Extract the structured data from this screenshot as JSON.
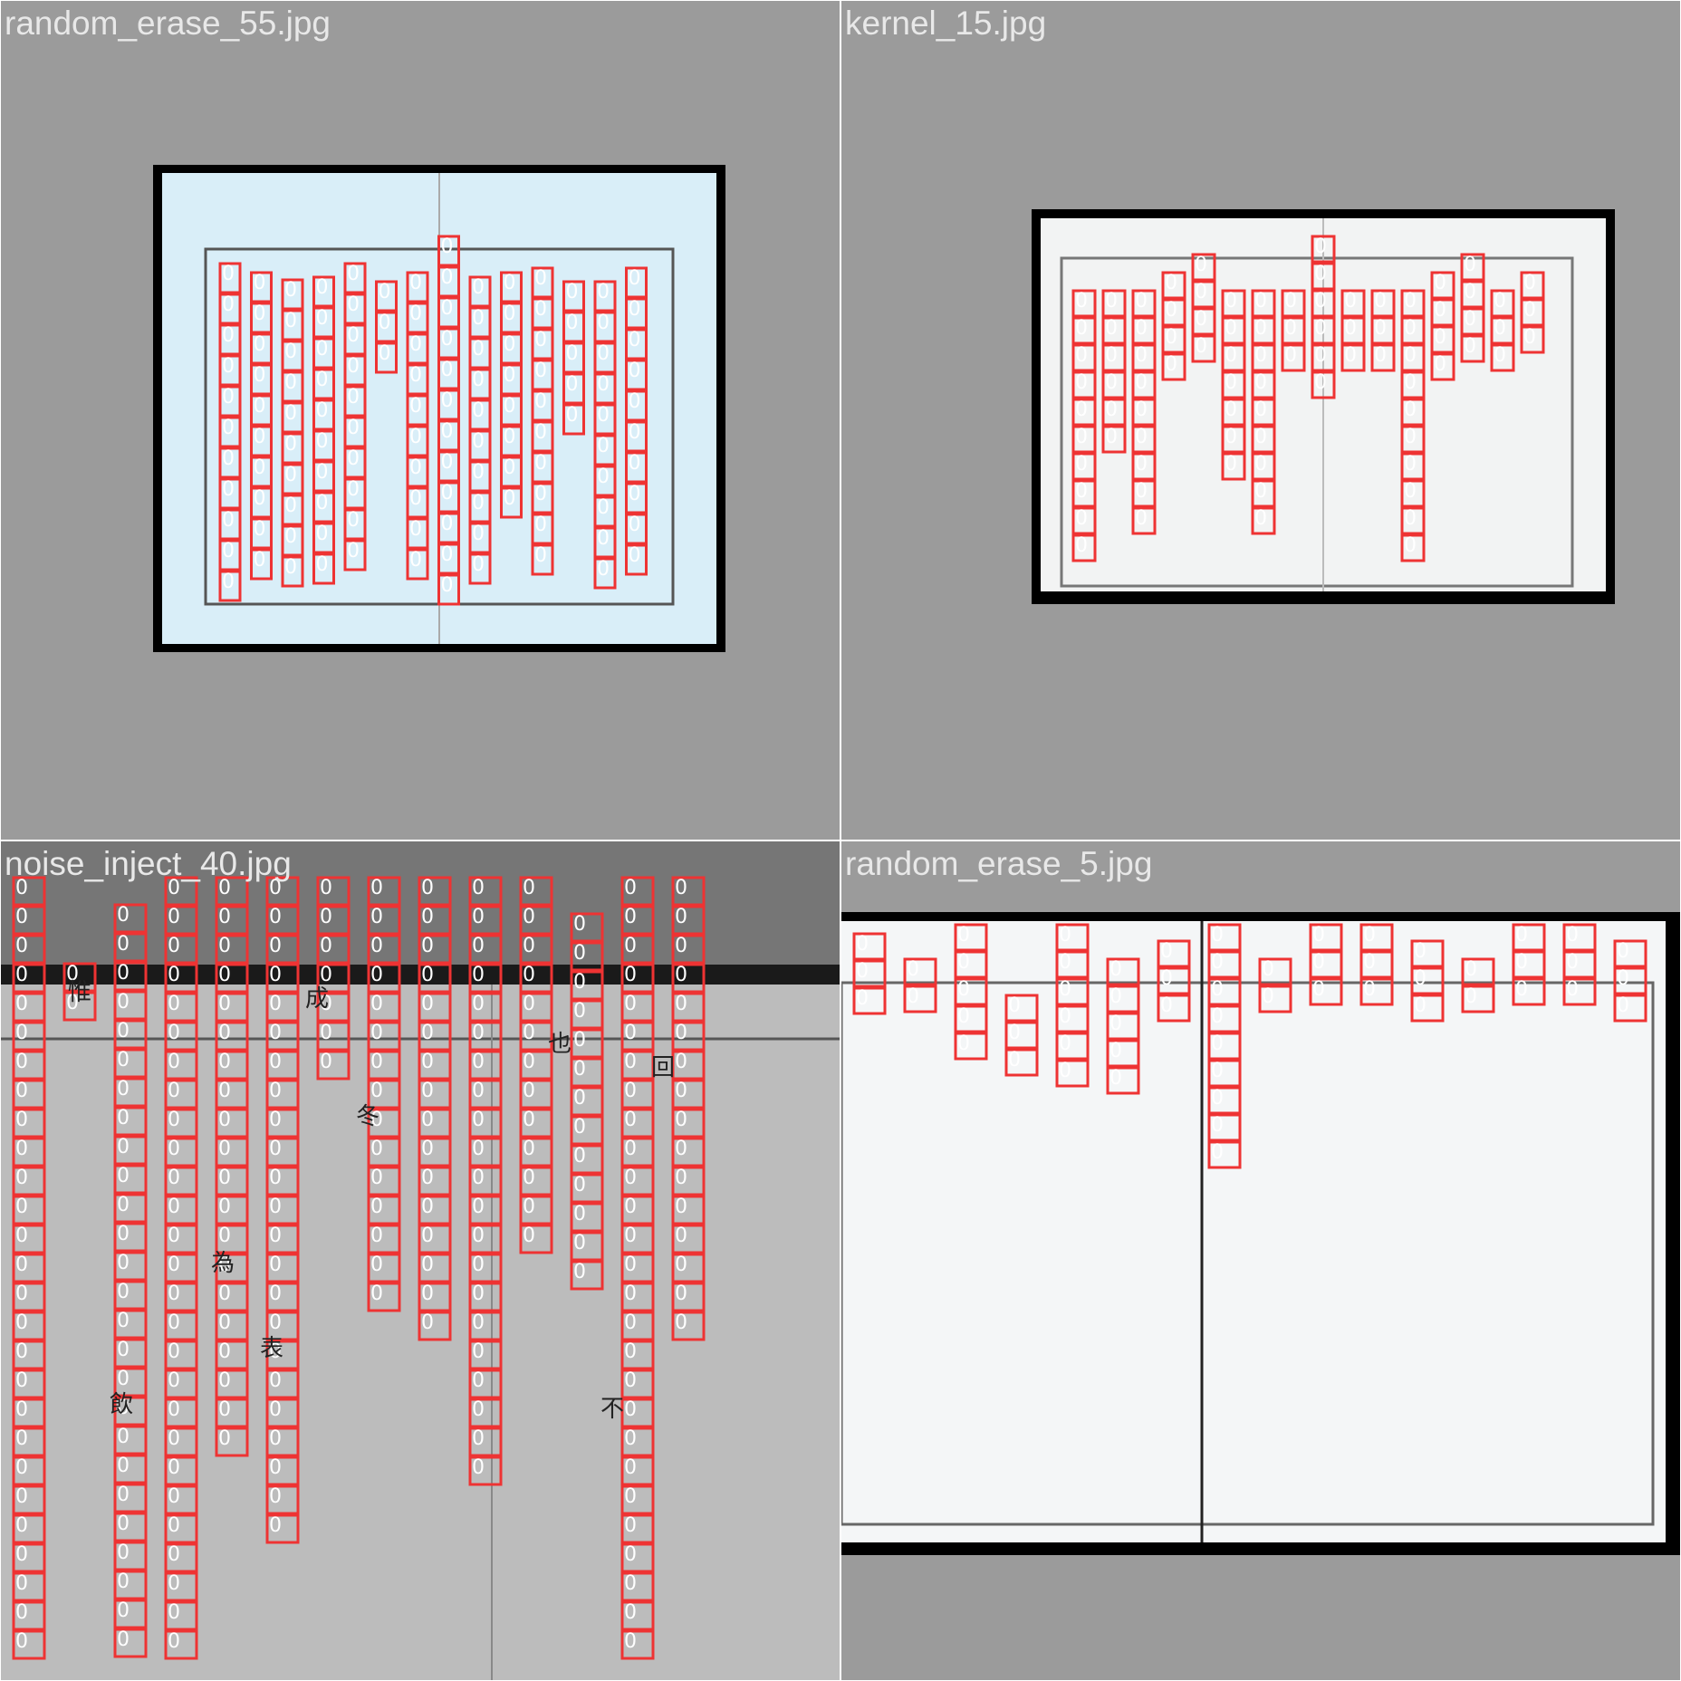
{
  "tiles": [
    {
      "filename": "random_erase_55.jpg",
      "background": "#9b9b9b",
      "page_tint": "#d9eef8",
      "box_label": "0"
    },
    {
      "filename": "kernel_15.jpg",
      "background": "#9b9b9b",
      "page_tint": "#f2f3f3",
      "box_label": "0"
    },
    {
      "filename": "noise_inject_40.jpg",
      "background": "#767676",
      "page_tint": "#bcbcbc",
      "box_label": "0",
      "chars": [
        "惟",
        "成",
        "冬",
        "也",
        "回",
        "為",
        "表",
        "不",
        "飲"
      ]
    },
    {
      "filename": "random_erase_5.jpg",
      "background": "#9b9b9b",
      "page_tint": "#f4f6f7",
      "box_label": "0"
    }
  ],
  "colors": {
    "box": "#ee3333",
    "divider": "#ffffff"
  }
}
